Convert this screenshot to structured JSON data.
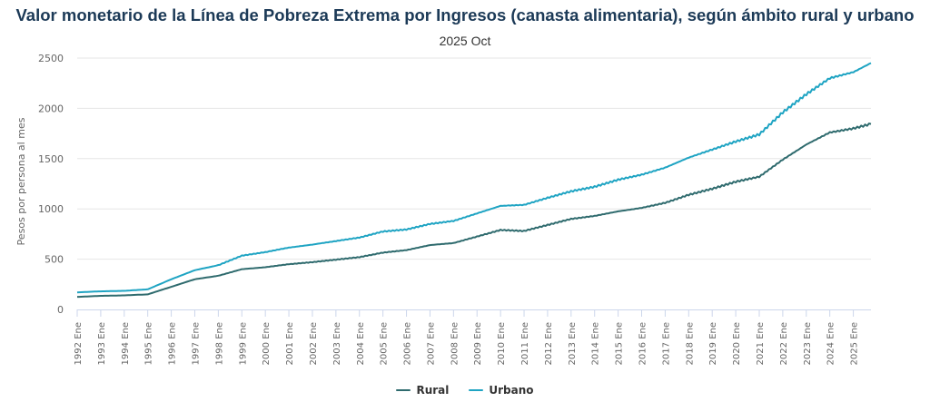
{
  "chart_data": {
    "type": "line",
    "title": "Valor monetario de la Línea de Pobreza Extrema por Ingresos (canasta alimentaria), según ámbito rural y urbano",
    "subtitle": "2025 Oct",
    "xlabel": "",
    "ylabel": "Pesos por persona al mes",
    "ylim": [
      0,
      2500
    ],
    "yticks": [
      0,
      500,
      1000,
      1500,
      2000,
      2500
    ],
    "grid": true,
    "legend_position": "bottom",
    "x_ticks": [
      "1992 Ene",
      "1993 Ene",
      "1994 Ene",
      "1995 Ene",
      "1996 Ene",
      "1997 Ene",
      "1998 Ene",
      "1999 Ene",
      "2000 Ene",
      "2001 Ene",
      "2002 Ene",
      "2003 Ene",
      "2004 Ene",
      "2005 Ene",
      "2006 Ene",
      "2007 Ene",
      "2008 Ene",
      "2009 Ene",
      "2010 Ene",
      "2011 Ene",
      "2012 Ene",
      "2013 Ene",
      "2014 Ene",
      "2015 Ene",
      "2016 Ene",
      "2017 Ene",
      "2018 Ene",
      "2019 Ene",
      "2020 Ene",
      "2021 Ene",
      "2022 Ene",
      "2023 Ene",
      "2024 Ene",
      "2025 Ene"
    ],
    "x": [
      1992.0,
      1993.0,
      1994.0,
      1995.0,
      1996.0,
      1997.0,
      1998.0,
      1999.0,
      2000.0,
      2001.0,
      2002.0,
      2003.0,
      2004.0,
      2005.0,
      2006.0,
      2007.0,
      2008.0,
      2009.0,
      2010.0,
      2011.0,
      2012.0,
      2013.0,
      2014.0,
      2015.0,
      2016.0,
      2017.0,
      2018.0,
      2019.0,
      2020.0,
      2021.0,
      2022.0,
      2023.0,
      2024.0,
      2025.0,
      2025.75
    ],
    "x_range": [
      1992.0,
      2025.75
    ],
    "series": [
      {
        "name": "Rural",
        "color": "#2f6b6e",
        "values": [
          125,
          135,
          140,
          150,
          225,
          300,
          335,
          400,
          420,
          450,
          470,
          495,
          520,
          565,
          590,
          640,
          660,
          725,
          790,
          780,
          840,
          900,
          930,
          975,
          1010,
          1060,
          1140,
          1200,
          1270,
          1320,
          1490,
          1640,
          1760,
          1800,
          1845
        ]
      },
      {
        "name": "Urbano",
        "color": "#1fa4c3",
        "values": [
          170,
          180,
          185,
          200,
          300,
          390,
          440,
          535,
          570,
          615,
          645,
          680,
          715,
          775,
          795,
          850,
          880,
          955,
          1030,
          1040,
          1110,
          1175,
          1220,
          1290,
          1340,
          1410,
          1510,
          1590,
          1670,
          1740,
          1960,
          2140,
          2300,
          2360,
          2450
        ]
      }
    ]
  },
  "legend": {
    "items": [
      {
        "label": "Rural",
        "color": "#2f6b6e"
      },
      {
        "label": "Urbano",
        "color": "#1fa4c3"
      }
    ]
  }
}
